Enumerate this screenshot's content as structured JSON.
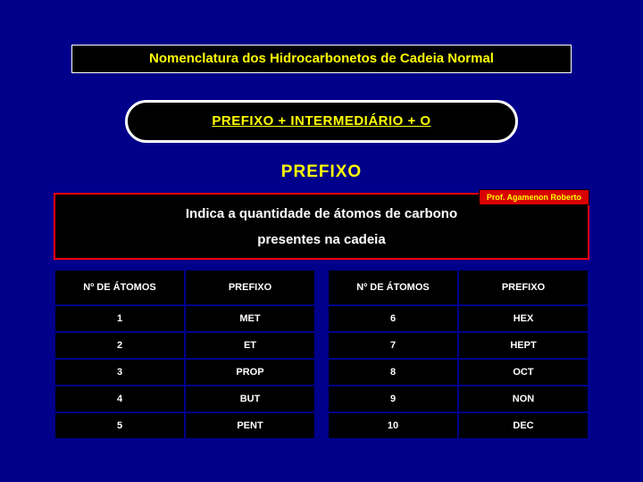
{
  "title": "Nomenclatura dos Hidrocarbonetos de Cadeia Normal",
  "formula": "PREFIXO  +  INTERMEDIÁRIO  +  O",
  "section_title": "PREFIXO",
  "prof": "Prof. Agamenon Roberto",
  "desc_line1": "Indica a quantidade de átomos de carbono",
  "desc_line2": "presentes na cadeia",
  "table_headers": {
    "atoms": "Nº DE ÁTOMOS",
    "prefix": "PREFIXO"
  },
  "left_table": {
    "rows": [
      {
        "n": "1",
        "p": "MET"
      },
      {
        "n": "2",
        "p": "ET"
      },
      {
        "n": "3",
        "p": "PROP"
      },
      {
        "n": "4",
        "p": "BUT"
      },
      {
        "n": "5",
        "p": "PENT"
      }
    ]
  },
  "right_table": {
    "rows": [
      {
        "n": "6",
        "p": "HEX"
      },
      {
        "n": "7",
        "p": "HEPT"
      },
      {
        "n": "8",
        "p": "OCT"
      },
      {
        "n": "9",
        "p": "NON"
      },
      {
        "n": "10",
        "p": "DEC"
      }
    ]
  },
  "colors": {
    "slide_bg": "#00008b",
    "box_bg": "#000000",
    "accent_text": "#ffff00",
    "border_white": "#ffffff",
    "border_red": "#ff0000",
    "badge_bg": "#d80000"
  }
}
